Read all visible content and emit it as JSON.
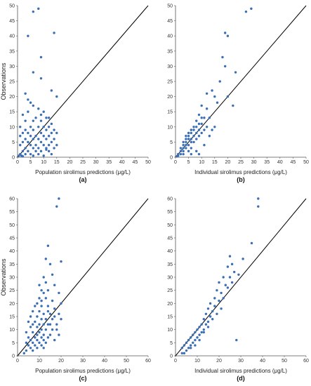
{
  "colors": {
    "point": "#3a6eb5",
    "line": "#000000",
    "axis": "#555555"
  },
  "chart_data": [
    {
      "id": "a",
      "type": "scatter",
      "panel_label": "(a)",
      "xlabel": "Population sirolimus predictions (μg/L)",
      "ylabel": "Observations",
      "xlim": [
        0,
        50
      ],
      "ylim": [
        0,
        50
      ],
      "xticks": [
        0,
        5,
        10,
        15,
        20,
        25,
        30,
        35,
        40,
        45,
        50
      ],
      "yticks": [
        0,
        5,
        10,
        15,
        20,
        25,
        30,
        35,
        40,
        45,
        50
      ],
      "identity_line": true,
      "grid": false,
      "points": [
        [
          6,
          48
        ],
        [
          8,
          49
        ],
        [
          4,
          40
        ],
        [
          14,
          41
        ],
        [
          9,
          33
        ],
        [
          6,
          28
        ],
        [
          9,
          26
        ],
        [
          13,
          22
        ],
        [
          15,
          20
        ],
        [
          3,
          21
        ],
        [
          4,
          19
        ],
        [
          5,
          18
        ],
        [
          6,
          17
        ],
        [
          8,
          16
        ],
        [
          10,
          15
        ],
        [
          9,
          14
        ],
        [
          4,
          15
        ],
        [
          2,
          14
        ],
        [
          7,
          13
        ],
        [
          11,
          13
        ],
        [
          12,
          13
        ],
        [
          3,
          12
        ],
        [
          6,
          12
        ],
        [
          9,
          12
        ],
        [
          13,
          11
        ],
        [
          1,
          10
        ],
        [
          5,
          10
        ],
        [
          8,
          10
        ],
        [
          10,
          10
        ],
        [
          12,
          10
        ],
        [
          3,
          9
        ],
        [
          6,
          9
        ],
        [
          11,
          9
        ],
        [
          14,
          9
        ],
        [
          2,
          8
        ],
        [
          4,
          8
        ],
        [
          9,
          8
        ],
        [
          13,
          8
        ],
        [
          15,
          8
        ],
        [
          1,
          7
        ],
        [
          5,
          7
        ],
        [
          7,
          7
        ],
        [
          10,
          7
        ],
        [
          12,
          7
        ],
        [
          3,
          6
        ],
        [
          6,
          6
        ],
        [
          8,
          6
        ],
        [
          11,
          6
        ],
        [
          14,
          6
        ],
        [
          2,
          5
        ],
        [
          4,
          5
        ],
        [
          9,
          5
        ],
        [
          13,
          5
        ],
        [
          1,
          4
        ],
        [
          5,
          4
        ],
        [
          7,
          4
        ],
        [
          10,
          4
        ],
        [
          12,
          4
        ],
        [
          15,
          4
        ],
        [
          3,
          3
        ],
        [
          6,
          3
        ],
        [
          8,
          3
        ],
        [
          11,
          3
        ],
        [
          14,
          3
        ],
        [
          2,
          2
        ],
        [
          4,
          2
        ],
        [
          7,
          2
        ],
        [
          9,
          2
        ],
        [
          12,
          2
        ],
        [
          1,
          1
        ],
        [
          3,
          1
        ],
        [
          5,
          1
        ],
        [
          8,
          1
        ],
        [
          13,
          1
        ],
        [
          0.5,
          0.5
        ],
        [
          1.5,
          0.5
        ],
        [
          2,
          0.3
        ],
        [
          10,
          0.5
        ],
        [
          6,
          0.5
        ],
        [
          11,
          2.5
        ]
      ]
    },
    {
      "id": "b",
      "type": "scatter",
      "panel_label": "(b)",
      "xlabel": "Individual sirolimus predictions (μg/L)",
      "ylabel": "",
      "xlim": [
        0,
        50
      ],
      "ylim": [
        0,
        50
      ],
      "xticks": [
        0,
        5,
        10,
        15,
        20,
        25,
        30,
        35,
        40,
        45,
        50
      ],
      "yticks": [
        0,
        5,
        10,
        15,
        20,
        25,
        30,
        35,
        40,
        45,
        50
      ],
      "identity_line": true,
      "grid": false,
      "points": [
        [
          29,
          49
        ],
        [
          27,
          48
        ],
        [
          19,
          41
        ],
        [
          20,
          40
        ],
        [
          18,
          33
        ],
        [
          19,
          30
        ],
        [
          23,
          28
        ],
        [
          17,
          25
        ],
        [
          14,
          22
        ],
        [
          15,
          20
        ],
        [
          12,
          21
        ],
        [
          16,
          18
        ],
        [
          10,
          17
        ],
        [
          12,
          16
        ],
        [
          9,
          14
        ],
        [
          10,
          13
        ],
        [
          11,
          13
        ],
        [
          8,
          12
        ],
        [
          9,
          11
        ],
        [
          10,
          11
        ],
        [
          7,
          10
        ],
        [
          8,
          10
        ],
        [
          12,
          10
        ],
        [
          6,
          9
        ],
        [
          7,
          9
        ],
        [
          9,
          9
        ],
        [
          11,
          9
        ],
        [
          5,
          8
        ],
        [
          6,
          8
        ],
        [
          8,
          8
        ],
        [
          10,
          8
        ],
        [
          4,
          7
        ],
        [
          5,
          7
        ],
        [
          7,
          7
        ],
        [
          9,
          7
        ],
        [
          13,
          7
        ],
        [
          4,
          6
        ],
        [
          5,
          6
        ],
        [
          6,
          6
        ],
        [
          8,
          6
        ],
        [
          3,
          5
        ],
        [
          4,
          5
        ],
        [
          6,
          5
        ],
        [
          7,
          5
        ],
        [
          3,
          4
        ],
        [
          4,
          4
        ],
        [
          5,
          4
        ],
        [
          11,
          4
        ],
        [
          2,
          3
        ],
        [
          3,
          3
        ],
        [
          4,
          3
        ],
        [
          6,
          3
        ],
        [
          2,
          2
        ],
        [
          3,
          2
        ],
        [
          5,
          2
        ],
        [
          1,
          1
        ],
        [
          2,
          1
        ],
        [
          3,
          1
        ],
        [
          1,
          0.5
        ],
        [
          0.5,
          0.3
        ],
        [
          6,
          1
        ],
        [
          9,
          1
        ],
        [
          8,
          2
        ],
        [
          15,
          10
        ],
        [
          13,
          13
        ],
        [
          14,
          9
        ],
        [
          20,
          20
        ],
        [
          22,
          17
        ]
      ]
    },
    {
      "id": "c",
      "type": "scatter",
      "panel_label": "(c)",
      "xlabel": "Population sirolimus predictions (μg/L)",
      "ylabel": "Observations",
      "xlim": [
        0,
        60
      ],
      "ylim": [
        0,
        60
      ],
      "xticks": [
        0,
        10,
        20,
        30,
        40,
        50,
        60
      ],
      "yticks": [
        0,
        5,
        10,
        15,
        20,
        25,
        30,
        35,
        40,
        45,
        50,
        55,
        60
      ],
      "identity_line": true,
      "grid": false,
      "points": [
        [
          19,
          60
        ],
        [
          18,
          57
        ],
        [
          14,
          42
        ],
        [
          13,
          37
        ],
        [
          15,
          35
        ],
        [
          20,
          36
        ],
        [
          12,
          30
        ],
        [
          16,
          31
        ],
        [
          13,
          28
        ],
        [
          17,
          27
        ],
        [
          11,
          25
        ],
        [
          14,
          25
        ],
        [
          19,
          24
        ],
        [
          10,
          22
        ],
        [
          13,
          22
        ],
        [
          16,
          21
        ],
        [
          20,
          20
        ],
        [
          8,
          19
        ],
        [
          11,
          19
        ],
        [
          14,
          19
        ],
        [
          17,
          18
        ],
        [
          7,
          17
        ],
        [
          10,
          17
        ],
        [
          12,
          16
        ],
        [
          15,
          16
        ],
        [
          19,
          16
        ],
        [
          6,
          15
        ],
        [
          9,
          15
        ],
        [
          11,
          14
        ],
        [
          13,
          14
        ],
        [
          16,
          14
        ],
        [
          20,
          14
        ],
        [
          5,
          13
        ],
        [
          8,
          13
        ],
        [
          10,
          12
        ],
        [
          12,
          12
        ],
        [
          14,
          12
        ],
        [
          18,
          12
        ],
        [
          6,
          11
        ],
        [
          9,
          11
        ],
        [
          11,
          10
        ],
        [
          13,
          10
        ],
        [
          16,
          10
        ],
        [
          4,
          9
        ],
        [
          7,
          9
        ],
        [
          10,
          9
        ],
        [
          12,
          8
        ],
        [
          15,
          8
        ],
        [
          19,
          8
        ],
        [
          5,
          7
        ],
        [
          8,
          7
        ],
        [
          11,
          7
        ],
        [
          14,
          7
        ],
        [
          6,
          6
        ],
        [
          9,
          6
        ],
        [
          12,
          6
        ],
        [
          17,
          6
        ],
        [
          4,
          5
        ],
        [
          7,
          5
        ],
        [
          10,
          5
        ],
        [
          13,
          5
        ],
        [
          5,
          4
        ],
        [
          8,
          4
        ],
        [
          11,
          4
        ],
        [
          6,
          3
        ],
        [
          9,
          3
        ],
        [
          12,
          3
        ],
        [
          4,
          2
        ],
        [
          7,
          2
        ],
        [
          3,
          1
        ],
        [
          18,
          10
        ],
        [
          15,
          12
        ],
        [
          17,
          15
        ],
        [
          14,
          17
        ],
        [
          9,
          20
        ],
        [
          11,
          21
        ],
        [
          12,
          24
        ],
        [
          10,
          27
        ],
        [
          9,
          8
        ],
        [
          7,
          12
        ]
      ]
    },
    {
      "id": "d",
      "type": "scatter",
      "panel_label": "(d)",
      "xlabel": "Individual sirolimus predictions (μg/L)",
      "ylabel": "",
      "xlim": [
        0,
        60
      ],
      "ylim": [
        0,
        60
      ],
      "xticks": [
        0,
        10,
        20,
        30,
        40,
        50,
        60
      ],
      "yticks": [
        0,
        5,
        10,
        15,
        20,
        25,
        30,
        35,
        40,
        45,
        50,
        55,
        60
      ],
      "identity_line": true,
      "grid": false,
      "points": [
        [
          38,
          60
        ],
        [
          38,
          57
        ],
        [
          35,
          43
        ],
        [
          31,
          37
        ],
        [
          25,
          38
        ],
        [
          26,
          35
        ],
        [
          24,
          34
        ],
        [
          27,
          32
        ],
        [
          22,
          30
        ],
        [
          25,
          30
        ],
        [
          20,
          28
        ],
        [
          23,
          27
        ],
        [
          19,
          25
        ],
        [
          21,
          24
        ],
        [
          18,
          22
        ],
        [
          20,
          21
        ],
        [
          16,
          20
        ],
        [
          18,
          19
        ],
        [
          15,
          18
        ],
        [
          17,
          17
        ],
        [
          14,
          16
        ],
        [
          16,
          15
        ],
        [
          13,
          14
        ],
        [
          15,
          13
        ],
        [
          12,
          12
        ],
        [
          14,
          12
        ],
        [
          11,
          11
        ],
        [
          13,
          10
        ],
        [
          10,
          10
        ],
        [
          12,
          9
        ],
        [
          9,
          9
        ],
        [
          11,
          8
        ],
        [
          8,
          8
        ],
        [
          10,
          7
        ],
        [
          7,
          7
        ],
        [
          9,
          6
        ],
        [
          6,
          6
        ],
        [
          8,
          5
        ],
        [
          5,
          5
        ],
        [
          7,
          4
        ],
        [
          4,
          4
        ],
        [
          6,
          3
        ],
        [
          3,
          3
        ],
        [
          5,
          2
        ],
        [
          4,
          1
        ],
        [
          3,
          1
        ],
        [
          28,
          6
        ],
        [
          22,
          22
        ],
        [
          24,
          26
        ],
        [
          26,
          28
        ],
        [
          29,
          31
        ],
        [
          21,
          18
        ],
        [
          19,
          16
        ],
        [
          17,
          14
        ],
        [
          15,
          11
        ],
        [
          13,
          9
        ],
        [
          11,
          6
        ],
        [
          9,
          4
        ],
        [
          7,
          3
        ]
      ]
    }
  ]
}
